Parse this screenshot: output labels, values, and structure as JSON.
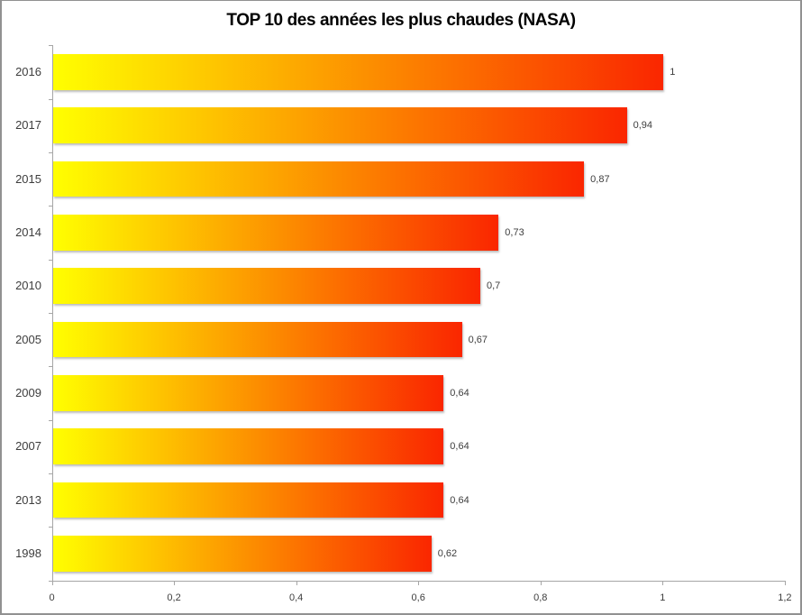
{
  "figure": {
    "title": "TOP 10 des années les plus chaudes (NASA)"
  },
  "chart_data": {
    "type": "bar",
    "orientation": "horizontal",
    "title": "TOP 10 des années les plus chaudes (NASA)",
    "categories": [
      "2016",
      "2017",
      "2015",
      "2014",
      "2010",
      "2005",
      "2009",
      "2007",
      "2013",
      "1998"
    ],
    "values": [
      1,
      0.94,
      0.87,
      0.73,
      0.7,
      0.67,
      0.64,
      0.64,
      0.64,
      0.62
    ],
    "value_labels": [
      "1",
      "0,94",
      "0,87",
      "0,73",
      "0,7",
      "0,67",
      "0,64",
      "0,64",
      "0,64",
      "0,62"
    ],
    "xlabel": "",
    "ylabel": "",
    "xlim": [
      0,
      1.2
    ],
    "x_ticks": [
      0,
      0.2,
      0.4,
      0.6,
      0.8,
      1,
      1.2
    ],
    "x_tick_labels": [
      "0",
      "0,2",
      "0,4",
      "0,6",
      "0,8",
      "1",
      "1,2"
    ],
    "grid": false,
    "legend": null,
    "bar_gradient_start": "#ffff00",
    "bar_gradient_end": "#fa2600",
    "colors": {
      "background": "#ffffff",
      "figure_border": "#919191",
      "axis_line": "#a6a6a6",
      "tick_label": "#3d3d3d",
      "title": "#000000"
    }
  }
}
